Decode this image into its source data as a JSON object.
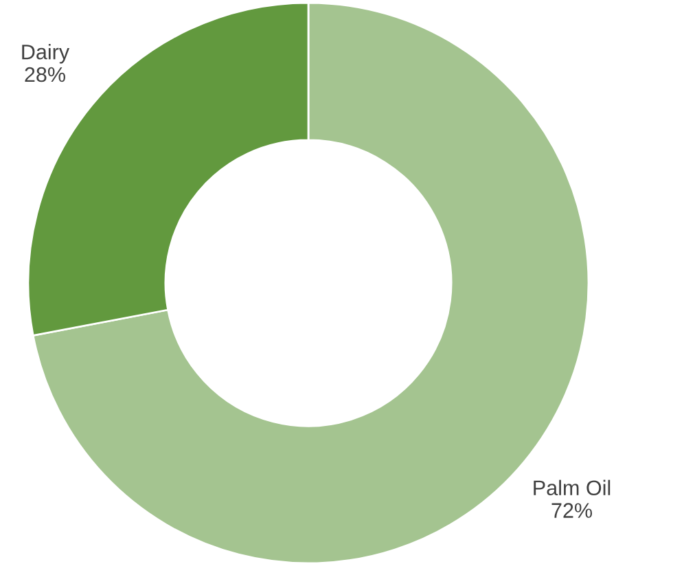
{
  "chart_data": {
    "type": "donut",
    "categories": [
      "Palm Oil",
      "Dairy"
    ],
    "values": [
      72,
      28
    ],
    "colors": [
      "#a4c490",
      "#62993e"
    ],
    "value_labels": [
      "72%",
      "28%"
    ]
  }
}
